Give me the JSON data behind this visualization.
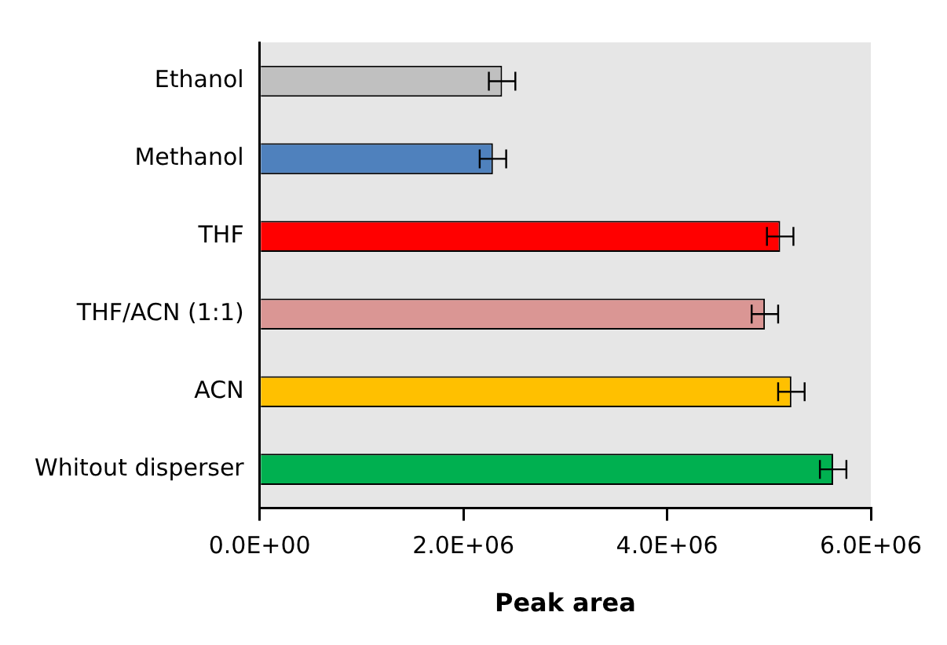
{
  "chart_data": {
    "type": "bar",
    "orientation": "horizontal",
    "xlabel": "Peak area",
    "categories": [
      "Ethanol",
      "Methanol",
      "THF",
      "THF/ACN (1:1)",
      "ACN",
      "Whitout disperser"
    ],
    "values": [
      2380000,
      2290000,
      5110000,
      4960000,
      5220000,
      5630000
    ],
    "errors": [
      130000,
      130000,
      130000,
      130000,
      130000,
      130000
    ],
    "colors": [
      "#c0c0c0",
      "#4f81bd",
      "#ff0000",
      "#da9694",
      "#ffc000",
      "#00b050"
    ],
    "xlim": [
      0,
      6000000
    ],
    "xticks": [
      {
        "value": 0,
        "label": "0.0E+00"
      },
      {
        "value": 2000000,
        "label": "2.0E+06"
      },
      {
        "value": 4000000,
        "label": "4.0E+06"
      },
      {
        "value": 6000000,
        "label": "6.0E+06"
      }
    ],
    "grid": false,
    "legend": false
  }
}
